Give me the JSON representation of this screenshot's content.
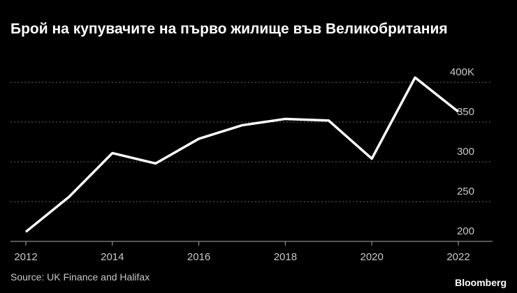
{
  "chart_data": {
    "type": "line",
    "title": "Брой на купувачите на първо жилище във Великобритания",
    "source": "Source: UK Finance and Halifax",
    "brand": "Bloomberg",
    "x": [
      2012,
      2013,
      2014,
      2015,
      2016,
      2017,
      2018,
      2019,
      2020,
      2021,
      2022
    ],
    "series": [
      {
        "color": "#ffffff",
        "values": [
          212,
          256,
          311,
          298,
          329,
          346,
          354,
          352,
          304,
          406,
          363
        ]
      }
    ],
    "xlim": [
      2012,
      2022
    ],
    "xticks": [
      2012,
      2014,
      2016,
      2018,
      2020,
      2022
    ],
    "ylim": [
      200,
      410
    ],
    "yticks": [
      200,
      250,
      300,
      350,
      {
        "value": 400,
        "label": "400K"
      }
    ],
    "grid": true
  }
}
